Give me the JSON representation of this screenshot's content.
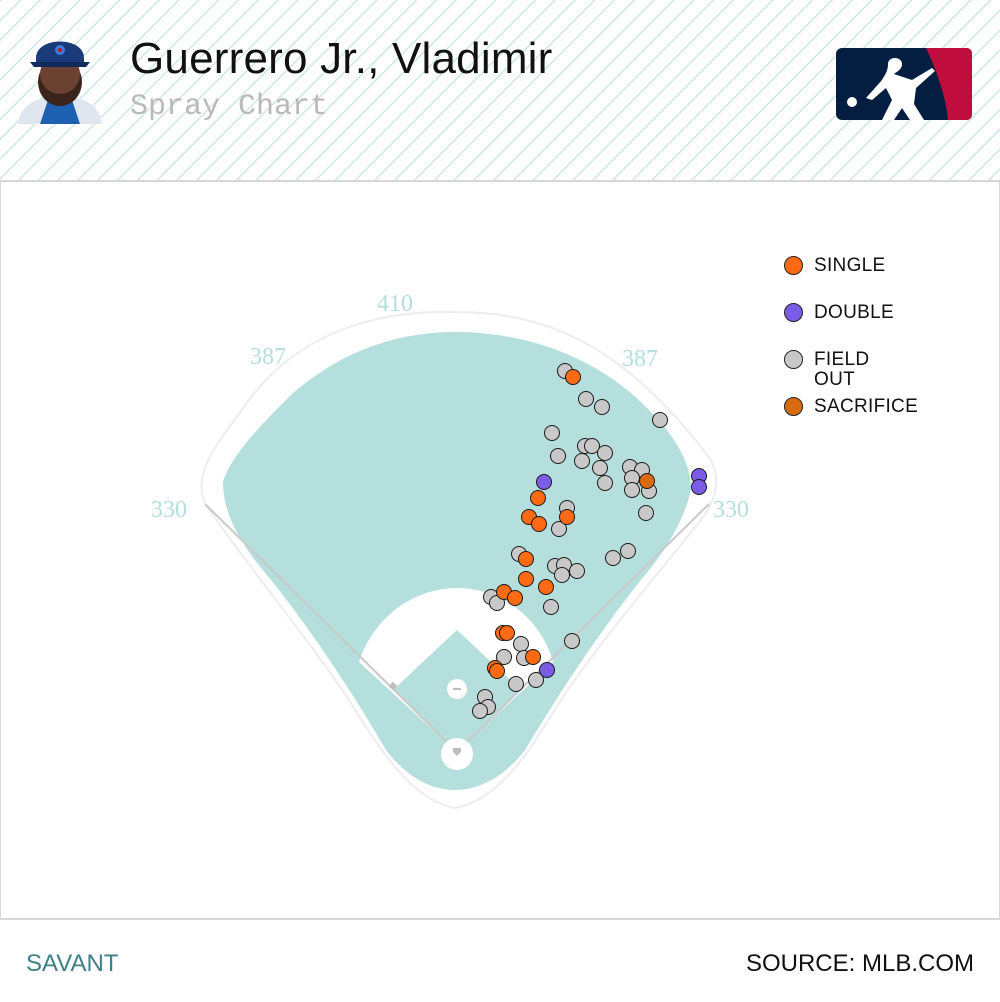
{
  "header": {
    "player_name": "Guerrero Jr., Vladimir",
    "subtitle": "Spray Chart"
  },
  "colors": {
    "outfield": "#b4dfdc",
    "single": "#ff6a13",
    "double": "#7a5ce6",
    "field_out": "#c8c8c8",
    "sacrifice": "#d86a12",
    "brand": "#3f7f86",
    "mlb_blue": "#041e42",
    "mlb_red": "#bf0d3e"
  },
  "icons": {
    "player_photo": "player-headshot-icon",
    "league_logo": "mlb-logo-icon"
  },
  "chart_data": {
    "type": "scatter",
    "title": "Spray Chart",
    "distances": {
      "left_line": "330",
      "left_center": "387",
      "center": "410",
      "right_center": "387",
      "right_line": "330"
    },
    "legend": [
      {
        "key": "single",
        "label": "SINGLE"
      },
      {
        "key": "double",
        "label": "DOUBLE"
      },
      {
        "key": "field_out",
        "label": "FIELD OUT"
      },
      {
        "key": "sacrifice",
        "label": "SACRIFICE"
      }
    ],
    "series": [
      {
        "name": "SINGLE",
        "key": "single",
        "points": [
          [
            572,
            377
          ],
          [
            537,
            498
          ],
          [
            528,
            517
          ],
          [
            538,
            524
          ],
          [
            566,
            517
          ],
          [
            525,
            559
          ],
          [
            525,
            579
          ],
          [
            545,
            587
          ],
          [
            503,
            592
          ],
          [
            514,
            598
          ],
          [
            502,
            633
          ],
          [
            506,
            633
          ],
          [
            532,
            657
          ],
          [
            494,
            668
          ],
          [
            496,
            671
          ]
        ]
      },
      {
        "name": "DOUBLE",
        "key": "double",
        "points": [
          [
            543,
            482
          ],
          [
            698,
            476
          ],
          [
            698,
            487
          ],
          [
            546,
            670
          ]
        ]
      },
      {
        "name": "FIELD OUT",
        "key": "field_out",
        "points": [
          [
            564,
            371
          ],
          [
            585,
            399
          ],
          [
            601,
            407
          ],
          [
            659,
            420
          ],
          [
            551,
            433
          ],
          [
            584,
            446
          ],
          [
            591,
            446
          ],
          [
            604,
            453
          ],
          [
            557,
            456
          ],
          [
            581,
            461
          ],
          [
            599,
            468
          ],
          [
            629,
            467
          ],
          [
            641,
            470
          ],
          [
            631,
            478
          ],
          [
            604,
            483
          ],
          [
            631,
            490
          ],
          [
            648,
            491
          ],
          [
            566,
            508
          ],
          [
            558,
            529
          ],
          [
            645,
            513
          ],
          [
            627,
            551
          ],
          [
            612,
            558
          ],
          [
            518,
            554
          ],
          [
            554,
            566
          ],
          [
            563,
            565
          ],
          [
            576,
            571
          ],
          [
            561,
            575
          ],
          [
            490,
            597
          ],
          [
            496,
            603
          ],
          [
            550,
            607
          ],
          [
            571,
            641
          ],
          [
            520,
            644
          ],
          [
            503,
            657
          ],
          [
            523,
            658
          ],
          [
            515,
            684
          ],
          [
            535,
            680
          ],
          [
            484,
            697
          ],
          [
            487,
            707
          ],
          [
            479,
            711
          ]
        ]
      },
      {
        "name": "SACRIFICE",
        "key": "sacrifice",
        "points": [
          [
            646,
            481
          ]
        ]
      }
    ]
  },
  "footer": {
    "brand": "SAVANT",
    "source": "SOURCE: MLB.COM"
  }
}
